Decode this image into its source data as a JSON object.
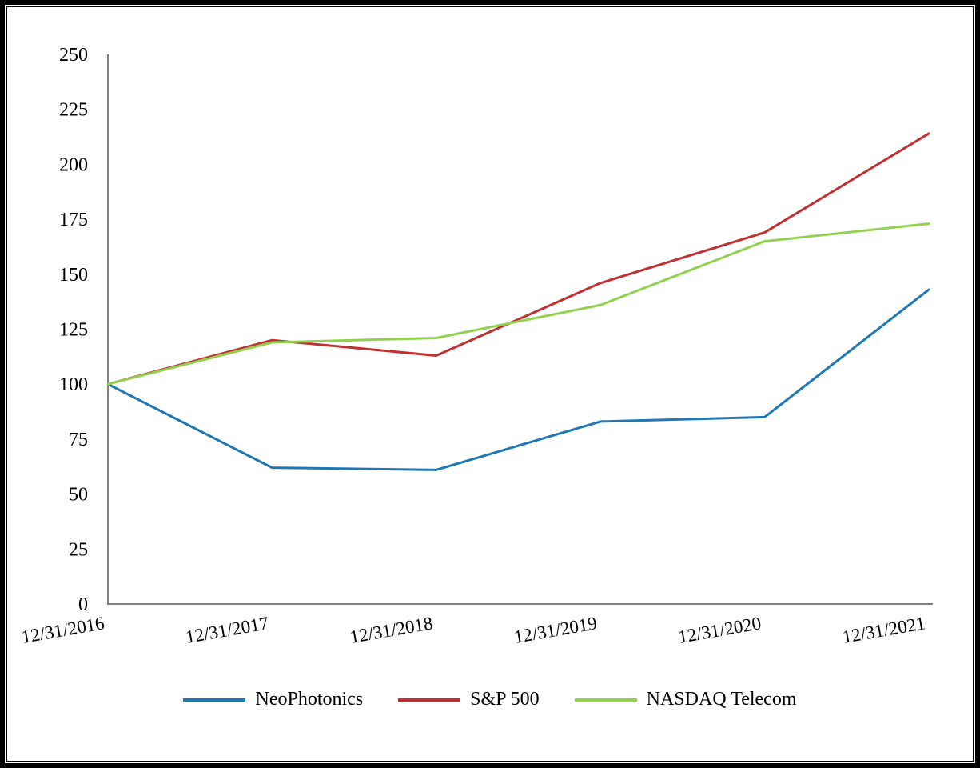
{
  "chart_data": {
    "type": "line",
    "title": "",
    "xlabel": "",
    "ylabel": "",
    "categories": [
      "12/31/2016",
      "12/31/2017",
      "12/31/2018",
      "12/31/2019",
      "12/31/2020",
      "12/31/2021"
    ],
    "series": [
      {
        "name": "NeoPhotonics",
        "color": "#1F77B4",
        "values": [
          100,
          62,
          61,
          83,
          85,
          143
        ]
      },
      {
        "name": "S&P 500",
        "color": "#C13030",
        "values": [
          100,
          120,
          113,
          146,
          169,
          214
        ]
      },
      {
        "name": "NASDAQ Telecom",
        "color": "#92D050",
        "values": [
          100,
          119,
          121,
          136,
          165,
          173
        ]
      }
    ],
    "ylim": [
      0,
      250
    ],
    "ytick_step": 25,
    "ytick_labels": [
      "0",
      "25",
      "50",
      "75",
      "100",
      "125",
      "150",
      "175",
      "200",
      "225",
      "250"
    ],
    "grid": false,
    "legend_position": "bottom",
    "axis_color": "#808080",
    "text_color": "#000000",
    "x_label_rotation_deg": -10
  }
}
